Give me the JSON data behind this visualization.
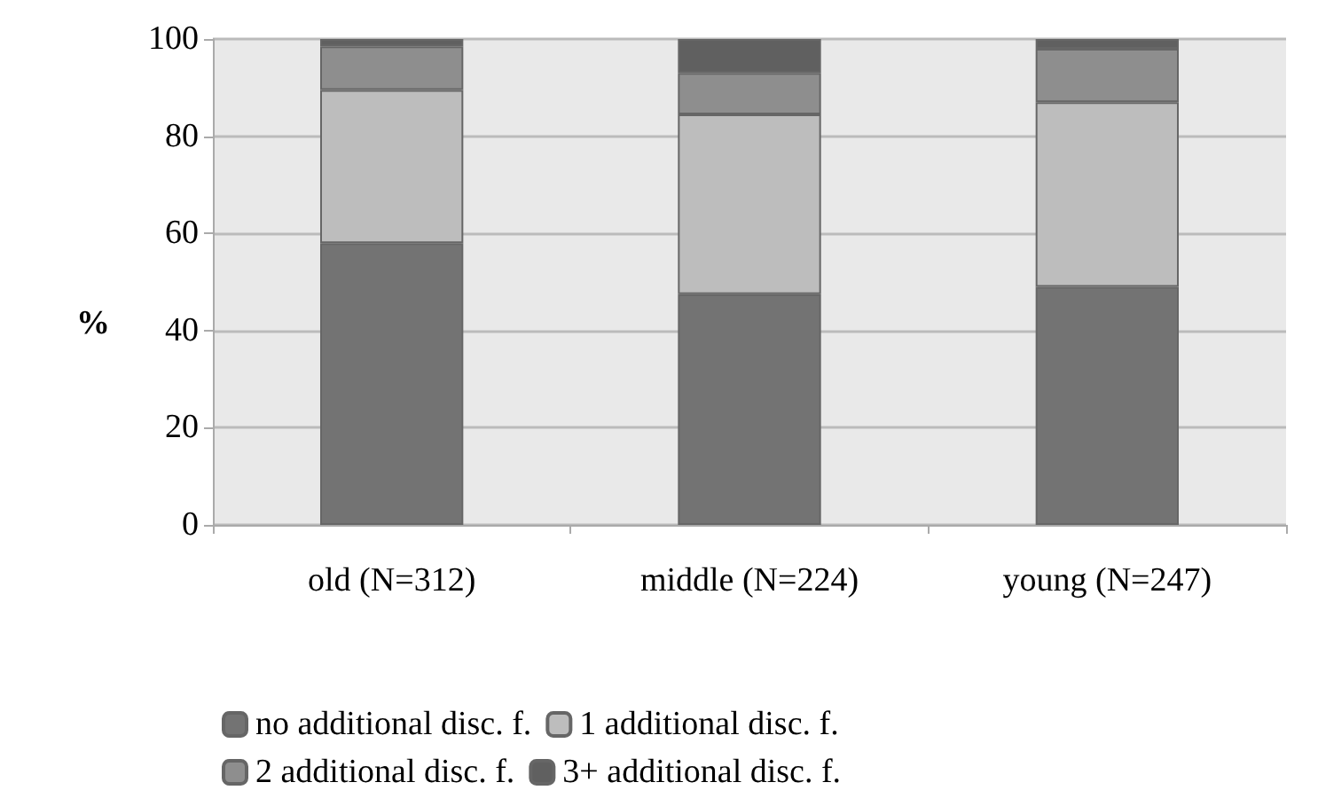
{
  "chart_data": {
    "type": "bar",
    "stacked": true,
    "ylabel": "%",
    "categories": [
      "old (N=312)",
      "middle (N=224)",
      "young (N=247)"
    ],
    "series": [
      {
        "name": "no additional disc. f.",
        "color": "#737373",
        "values": [
          58,
          47.5,
          49
        ]
      },
      {
        "name": "1 additional disc. f.",
        "color": "#bdbdbd",
        "values": [
          31.5,
          37,
          38
        ]
      },
      {
        "name": "2 additional disc. f.",
        "color": "#8e8e8e",
        "values": [
          9,
          8.5,
          11
        ]
      },
      {
        "name": "3+ additional disc. f.",
        "color": "#606060",
        "values": [
          1.5,
          7,
          2
        ]
      }
    ],
    "ylim": [
      0,
      100
    ],
    "yticks": [
      0,
      20,
      40,
      60,
      80,
      100
    ],
    "grid": "y",
    "legend": "bottom"
  }
}
